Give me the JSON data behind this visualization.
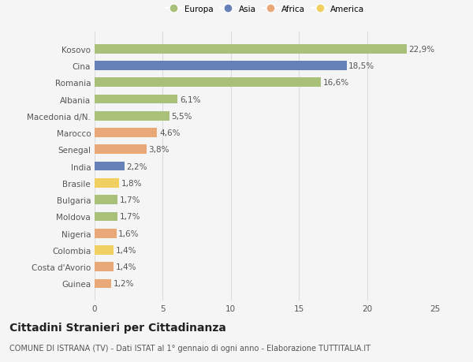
{
  "countries": [
    "Kosovo",
    "Cina",
    "Romania",
    "Albania",
    "Macedonia d/N.",
    "Marocco",
    "Senegal",
    "India",
    "Brasile",
    "Bulgaria",
    "Moldova",
    "Nigeria",
    "Colombia",
    "Costa d'Avorio",
    "Guinea"
  ],
  "values": [
    22.9,
    18.5,
    16.6,
    6.1,
    5.5,
    4.6,
    3.8,
    2.2,
    1.8,
    1.7,
    1.7,
    1.6,
    1.4,
    1.4,
    1.2
  ],
  "continents": [
    "Europa",
    "Asia",
    "Europa",
    "Europa",
    "Europa",
    "Africa",
    "Africa",
    "Asia",
    "America",
    "Europa",
    "Europa",
    "Africa",
    "America",
    "Africa",
    "Africa"
  ],
  "colors": {
    "Europa": "#a8c07a",
    "Asia": "#6680b8",
    "Africa": "#e8a878",
    "America": "#f0d060"
  },
  "title": "Cittadini Stranieri per Cittadinanza",
  "subtitle": "COMUNE DI ISTRANA (TV) - Dati ISTAT al 1° gennaio di ogni anno - Elaborazione TUTTITALIA.IT",
  "xlim": [
    0,
    25
  ],
  "xticks": [
    0,
    5,
    10,
    15,
    20,
    25
  ],
  "background_color": "#f5f5f5",
  "grid_color": "#dddddd",
  "bar_height": 0.55,
  "label_fontsize": 7.5,
  "tick_fontsize": 7.5,
  "title_fontsize": 10,
  "subtitle_fontsize": 7,
  "legend_labels": [
    "Europa",
    "Asia",
    "Africa",
    "America"
  ]
}
